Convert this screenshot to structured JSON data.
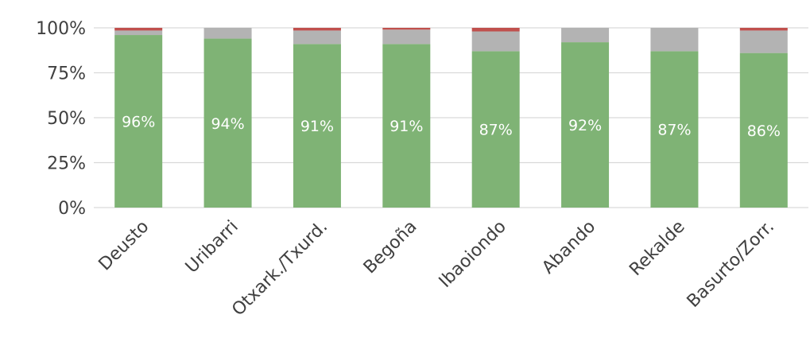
{
  "chart_data": {
    "type": "bar",
    "stacked": true,
    "percent_stacked": true,
    "categories": [
      "Deusto",
      "Uribarri",
      "Otxark./Txurd.",
      "Begoña",
      "Ibaoiondo",
      "Abando",
      "Rekalde",
      "Basurto/Zorr."
    ],
    "series": [
      {
        "values": [
          96,
          94,
          91,
          91,
          87,
          92,
          87,
          86
        ],
        "color": "#7fb375",
        "labels": [
          "96%",
          "94%",
          "91%",
          "91%",
          "87%",
          "92%",
          "87%",
          "86%"
        ]
      },
      {
        "values": [
          2.5,
          6,
          7.5,
          8,
          11,
          8,
          13,
          12.5
        ],
        "color": "#b3b3b3"
      },
      {
        "values": [
          1.5,
          0,
          1.5,
          1,
          2,
          0,
          0,
          1.5
        ],
        "color": "#c0504d"
      }
    ],
    "y_ticks": [
      "0%",
      "25%",
      "50%",
      "75%",
      "100%"
    ],
    "ylim": [
      0,
      100
    ],
    "grid": true,
    "gridline_color": "#d9d9d9",
    "axis_text_color": "#404040",
    "x_label_rotation_deg": -45
  }
}
